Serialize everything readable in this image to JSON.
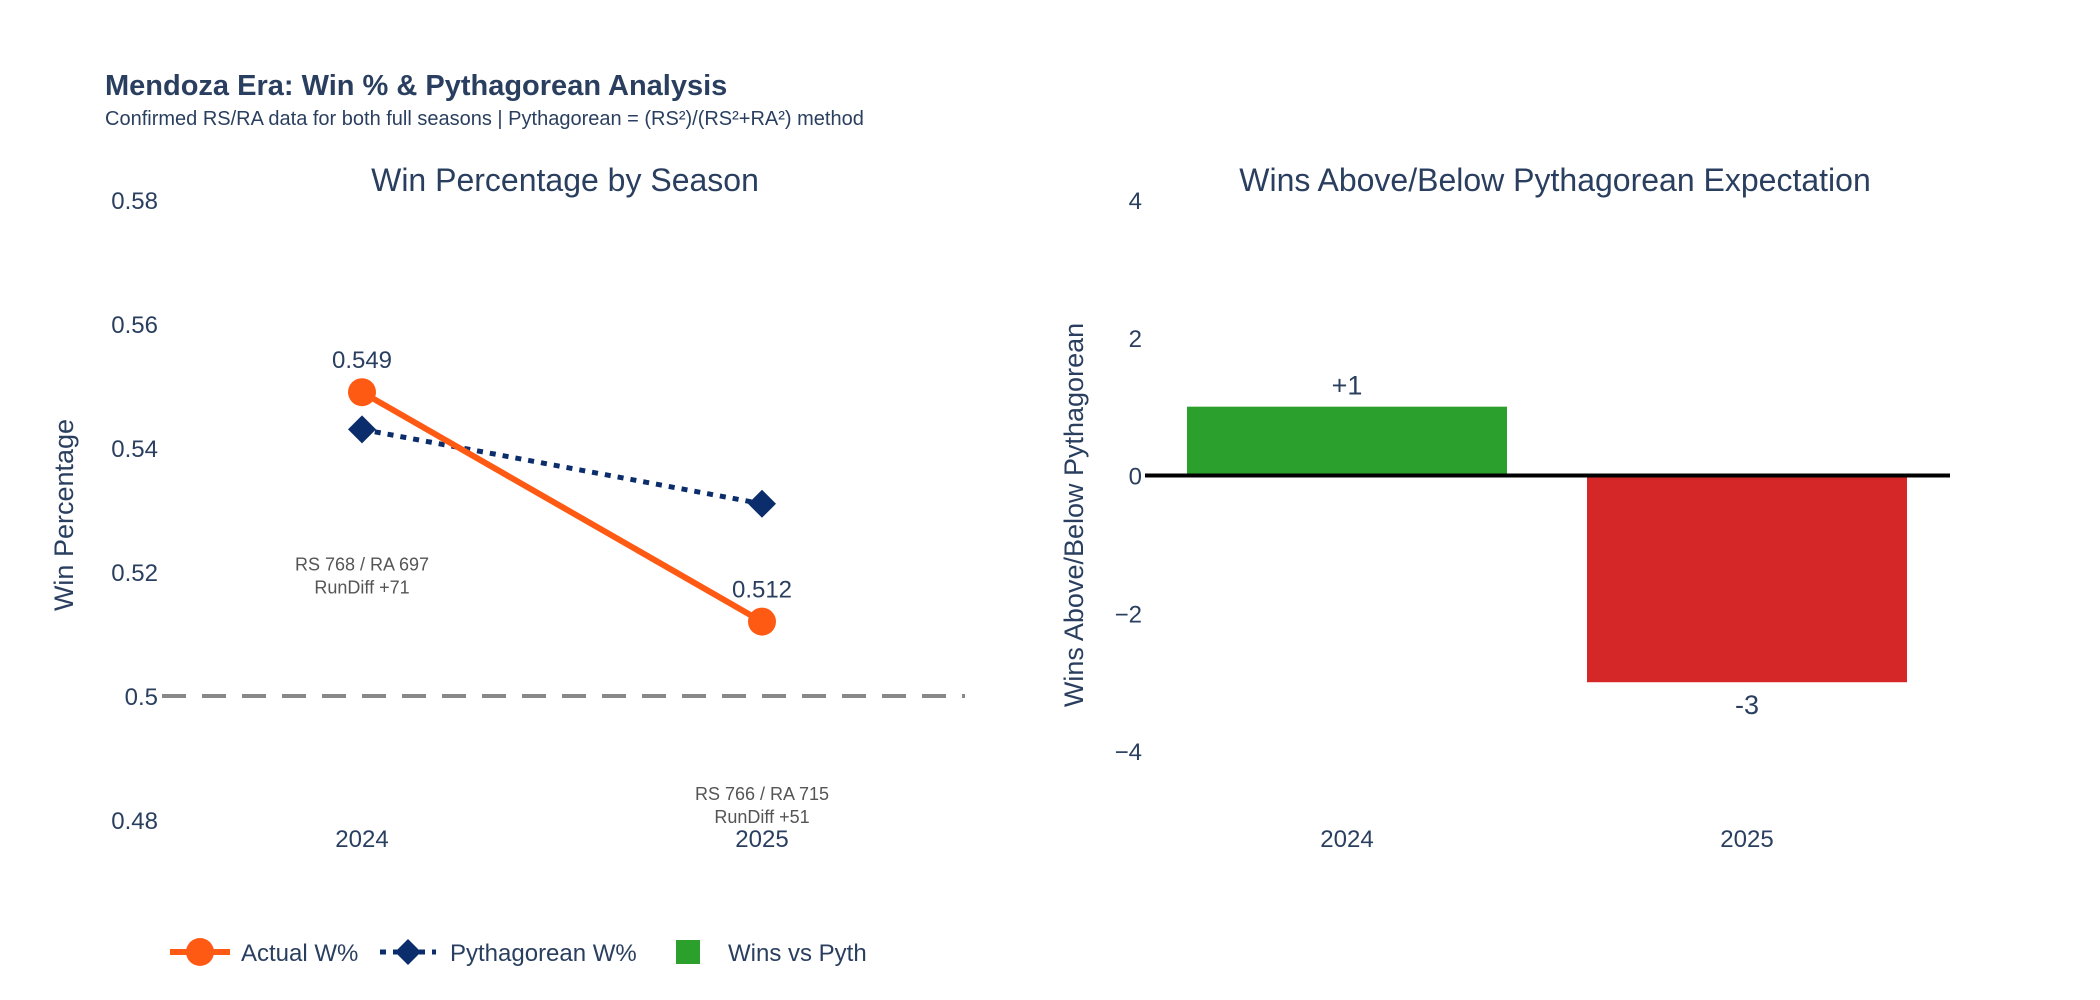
{
  "header": {
    "title": "Mendoza Era: Win % & Pythagorean Analysis",
    "subtitle": "Confirmed RS/RA data for both full seasons | Pythagorean = (RS²)/(RS²+RA²) method"
  },
  "chart_data": [
    {
      "type": "line",
      "title": "Win Percentage by Season",
      "ylabel": "Win Percentage",
      "xlabel": "",
      "categories": [
        "2024",
        "2025"
      ],
      "ylim": [
        0.48,
        0.58
      ],
      "yticks": [
        "0.48",
        "0.5",
        "0.52",
        "0.54",
        "0.56",
        "0.58"
      ],
      "grid": false,
      "series": [
        {
          "name": "Actual W%",
          "values": [
            0.549,
            0.512
          ],
          "color": "#ff5a14",
          "marker": "circle",
          "dash": "solid",
          "labels": [
            "0.549",
            "0.512"
          ]
        },
        {
          "name": "Pythagorean W%",
          "values": [
            0.543,
            0.531
          ],
          "color": "#0b2d6b",
          "marker": "diamond",
          "dash": "dot"
        }
      ],
      "reference_line": {
        "y": 0.5,
        "color": "#888888",
        "dash": "dash"
      },
      "annotations": [
        {
          "x": "2024",
          "y": 0.5175,
          "lines": [
            "RS 768 / RA 697",
            "RunDiff +71"
          ]
        },
        {
          "x": "2025",
          "y": 0.4805,
          "lines": [
            "RS 766 / RA 715",
            "RunDiff +51"
          ]
        }
      ]
    },
    {
      "type": "bar",
      "title": "Wins Above/Below Pythagorean Expectation",
      "ylabel": "Wins Above/Below Pythagorean",
      "xlabel": "",
      "categories": [
        "2024",
        "2025"
      ],
      "values": [
        1,
        -3
      ],
      "labels": [
        "+1",
        "-3"
      ],
      "colors": [
        "#2ca02c",
        "#d62728"
      ],
      "ylim": [
        -5,
        4
      ],
      "yticks": [
        "−4",
        "−2",
        "0",
        "2",
        "4"
      ],
      "ytick_values": [
        -4,
        -2,
        0,
        2,
        4
      ],
      "series_name": "Wins vs Pyth",
      "grid": false
    }
  ],
  "legend": {
    "placement": "bottom-left",
    "items": [
      {
        "label": "Actual W%",
        "color": "#ff5a14",
        "symbol": "circle-line"
      },
      {
        "label": "Pythagorean W%",
        "color": "#0b2d6b",
        "symbol": "diamond-dotted"
      },
      {
        "label": "Wins vs Pyth",
        "color": "#2ca02c",
        "symbol": "square"
      }
    ]
  }
}
